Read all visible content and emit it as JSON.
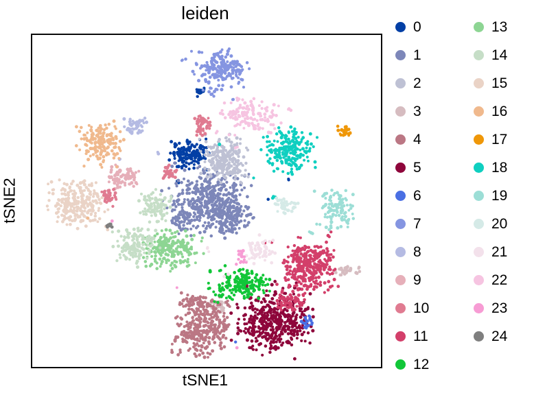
{
  "chart_data": {
    "type": "scatter",
    "title": "leiden",
    "xlabel": "tSNE1",
    "ylabel": "tSNE2",
    "axes": {
      "ticks": "none",
      "frame": true,
      "gridlines": false
    },
    "legend": {
      "position": "right",
      "columns": 2,
      "column_break_index": 13
    },
    "coordinate_note": "blob centers/radii are fractions of the plot area, origin at top-left",
    "dot_radius_px": 2.2,
    "clusters": [
      {
        "label": "0",
        "color": "#023fa5",
        "blobs": [
          {
            "x": 0.451,
            "y": 0.359,
            "rx": 0.057,
            "ry": 0.051,
            "n": 135
          },
          {
            "x": 0.476,
            "y": 0.171,
            "rx": 0.017,
            "ry": 0.018,
            "n": 14
          },
          {
            "x": 0.735,
            "y": 0.433,
            "rx": 0.005,
            "ry": 0.005,
            "n": 2
          },
          {
            "x": 0.414,
            "y": 0.441,
            "rx": 0.006,
            "ry": 0.006,
            "n": 2
          },
          {
            "x": 0.68,
            "y": 0.493,
            "rx": 0.004,
            "ry": 0.004,
            "n": 1
          }
        ]
      },
      {
        "label": "1",
        "color": "#7d87b9",
        "blobs": [
          {
            "x": 0.496,
            "y": 0.499,
            "rx": 0.122,
            "ry": 0.093,
            "n": 430
          },
          {
            "x": 0.569,
            "y": 0.557,
            "rx": 0.065,
            "ry": 0.047,
            "n": 120
          },
          {
            "x": 0.43,
            "y": 0.56,
            "rx": 0.04,
            "ry": 0.035,
            "n": 40
          }
        ]
      },
      {
        "label": "2",
        "color": "#bec1d4",
        "blobs": [
          {
            "x": 0.563,
            "y": 0.375,
            "rx": 0.069,
            "ry": 0.068,
            "n": 230
          }
        ]
      },
      {
        "label": "3",
        "color": "#d6bcc0",
        "blobs": [
          {
            "x": 0.904,
            "y": 0.711,
            "rx": 0.046,
            "ry": 0.016,
            "n": 30
          },
          {
            "x": 0.535,
            "y": 0.829,
            "rx": 0.036,
            "ry": 0.03,
            "n": 25
          },
          {
            "x": 0.769,
            "y": 0.668,
            "rx": 0.008,
            "ry": 0.007,
            "n": 2
          }
        ]
      },
      {
        "label": "4",
        "color": "#bb7784",
        "blobs": [
          {
            "x": 0.504,
            "y": 0.885,
            "rx": 0.09,
            "ry": 0.085,
            "n": 320
          },
          {
            "x": 0.465,
            "y": 0.808,
            "rx": 0.042,
            "ry": 0.028,
            "n": 50
          }
        ]
      },
      {
        "label": "5",
        "color": "#8e063b",
        "blobs": [
          {
            "x": 0.667,
            "y": 0.862,
            "rx": 0.115,
            "ry": 0.095,
            "n": 430
          }
        ]
      },
      {
        "label": "6",
        "color": "#4a6fe3",
        "blobs": [
          {
            "x": 0.788,
            "y": 0.866,
            "rx": 0.028,
            "ry": 0.022,
            "n": 20
          },
          {
            "x": 0.584,
            "y": 0.926,
            "rx": 0.004,
            "ry": 0.004,
            "n": 1
          }
        ]
      },
      {
        "label": "7",
        "color": "#8595e1",
        "blobs": [
          {
            "x": 0.545,
            "y": 0.101,
            "rx": 0.074,
            "ry": 0.058,
            "n": 185
          },
          {
            "x": 0.433,
            "y": 0.074,
            "rx": 0.01,
            "ry": 0.01,
            "n": 3
          },
          {
            "x": 0.514,
            "y": 0.184,
            "rx": 0.012,
            "ry": 0.012,
            "n": 4
          },
          {
            "x": 0.58,
            "y": 0.192,
            "rx": 0.008,
            "ry": 0.008,
            "n": 2
          }
        ]
      },
      {
        "label": "8",
        "color": "#b5bbe3",
        "blobs": [
          {
            "x": 0.296,
            "y": 0.276,
            "rx": 0.034,
            "ry": 0.03,
            "n": 48
          },
          {
            "x": 0.361,
            "y": 0.351,
            "rx": 0.006,
            "ry": 0.006,
            "n": 2
          },
          {
            "x": 0.249,
            "y": 0.375,
            "rx": 0.005,
            "ry": 0.01,
            "n": 2
          }
        ]
      },
      {
        "label": "9",
        "color": "#e6afb9",
        "blobs": [
          {
            "x": 0.257,
            "y": 0.425,
            "rx": 0.047,
            "ry": 0.034,
            "n": 85
          }
        ]
      },
      {
        "label": "10",
        "color": "#e07b91",
        "blobs": [
          {
            "x": 0.482,
            "y": 0.276,
            "rx": 0.027,
            "ry": 0.04,
            "n": 48
          },
          {
            "x": 0.394,
            "y": 0.419,
            "rx": 0.027,
            "ry": 0.023,
            "n": 30
          },
          {
            "x": 0.22,
            "y": 0.482,
            "rx": 0.025,
            "ry": 0.03,
            "n": 36
          }
        ]
      },
      {
        "label": "11",
        "color": "#d33f6a",
        "blobs": [
          {
            "x": 0.79,
            "y": 0.705,
            "rx": 0.085,
            "ry": 0.082,
            "n": 310
          },
          {
            "x": 0.751,
            "y": 0.8,
            "rx": 0.052,
            "ry": 0.032,
            "n": 60
          },
          {
            "x": 0.855,
            "y": 0.6,
            "rx": 0.01,
            "ry": 0.01,
            "n": 3
          },
          {
            "x": 0.676,
            "y": 0.627,
            "rx": 0.015,
            "ry": 0.01,
            "n": 3
          }
        ]
      },
      {
        "label": "12",
        "color": "#11c638",
        "blobs": [
          {
            "x": 0.588,
            "y": 0.751,
            "rx": 0.083,
            "ry": 0.053,
            "n": 175
          },
          {
            "x": 0.504,
            "y": 0.716,
            "rx": 0.01,
            "ry": 0.008,
            "n": 2
          }
        ]
      },
      {
        "label": "13",
        "color": "#8dd593",
        "blobs": [
          {
            "x": 0.392,
            "y": 0.649,
            "rx": 0.079,
            "ry": 0.059,
            "n": 215
          }
        ]
      },
      {
        "label": "14",
        "color": "#c6dec7",
        "blobs": [
          {
            "x": 0.298,
            "y": 0.635,
            "rx": 0.062,
            "ry": 0.058,
            "n": 135
          },
          {
            "x": 0.359,
            "y": 0.518,
            "rx": 0.056,
            "ry": 0.056,
            "n": 95
          }
        ]
      },
      {
        "label": "15",
        "color": "#ead3c6",
        "blobs": [
          {
            "x": 0.12,
            "y": 0.503,
            "rx": 0.08,
            "ry": 0.079,
            "n": 235
          }
        ]
      },
      {
        "label": "16",
        "color": "#f0b98d",
        "blobs": [
          {
            "x": 0.192,
            "y": 0.326,
            "rx": 0.066,
            "ry": 0.058,
            "n": 155
          },
          {
            "x": 0.157,
            "y": 0.551,
            "rx": 0.004,
            "ry": 0.004,
            "n": 1
          },
          {
            "x": 0.243,
            "y": 0.396,
            "rx": 0.004,
            "ry": 0.004,
            "n": 1
          }
        ]
      },
      {
        "label": "17",
        "color": "#ef9708",
        "blobs": [
          {
            "x": 0.89,
            "y": 0.293,
            "rx": 0.022,
            "ry": 0.019,
            "n": 24
          }
        ]
      },
      {
        "label": "18",
        "color": "#0fcfc0",
        "blobs": [
          {
            "x": 0.735,
            "y": 0.338,
            "rx": 0.074,
            "ry": 0.071,
            "n": 205
          },
          {
            "x": 0.535,
            "y": 0.33,
            "rx": 0.004,
            "ry": 0.004,
            "n": 1
          },
          {
            "x": 0.633,
            "y": 0.431,
            "rx": 0.004,
            "ry": 0.004,
            "n": 1
          },
          {
            "x": 0.688,
            "y": 0.49,
            "rx": 0.009,
            "ry": 0.007,
            "n": 3
          }
        ]
      },
      {
        "label": "19",
        "color": "#9cded6",
        "blobs": [
          {
            "x": 0.869,
            "y": 0.536,
            "rx": 0.056,
            "ry": 0.069,
            "n": 105
          },
          {
            "x": 0.8,
            "y": 0.594,
            "rx": 0.01,
            "ry": 0.008,
            "n": 3
          }
        ]
      },
      {
        "label": "20",
        "color": "#d5eae7",
        "blobs": [
          {
            "x": 0.724,
            "y": 0.509,
            "rx": 0.037,
            "ry": 0.028,
            "n": 42
          }
        ]
      },
      {
        "label": "21",
        "color": "#f3e1eb",
        "blobs": [
          {
            "x": 0.657,
            "y": 0.647,
            "rx": 0.048,
            "ry": 0.04,
            "n": 62
          },
          {
            "x": 0.565,
            "y": 0.722,
            "rx": 0.012,
            "ry": 0.01,
            "n": 3
          },
          {
            "x": 0.506,
            "y": 0.646,
            "rx": 0.01,
            "ry": 0.012,
            "n": 3
          }
        ]
      },
      {
        "label": "22",
        "color": "#f6c4e1",
        "blobs": [
          {
            "x": 0.624,
            "y": 0.247,
            "rx": 0.076,
            "ry": 0.05,
            "n": 132
          },
          {
            "x": 0.743,
            "y": 0.227,
            "rx": 0.013,
            "ry": 0.01,
            "n": 3
          },
          {
            "x": 0.522,
            "y": 0.293,
            "rx": 0.008,
            "ry": 0.008,
            "n": 2
          },
          {
            "x": 0.588,
            "y": 0.338,
            "rx": 0.008,
            "ry": 0.008,
            "n": 2
          }
        ]
      },
      {
        "label": "23",
        "color": "#f79cd4",
        "blobs": [
          {
            "x": 0.594,
            "y": 0.664,
            "rx": 0.02,
            "ry": 0.024,
            "n": 17
          },
          {
            "x": 0.414,
            "y": 0.761,
            "rx": 0.004,
            "ry": 0.004,
            "n": 1
          },
          {
            "x": 0.227,
            "y": 0.563,
            "rx": 0.004,
            "ry": 0.004,
            "n": 1
          },
          {
            "x": 0.59,
            "y": 0.942,
            "rx": 0.004,
            "ry": 0.004,
            "n": 1
          }
        ]
      },
      {
        "label": "24",
        "color": "#7f7f7f",
        "blobs": [
          {
            "x": 0.218,
            "y": 0.573,
            "rx": 0.013,
            "ry": 0.007,
            "n": 9
          }
        ]
      }
    ]
  }
}
